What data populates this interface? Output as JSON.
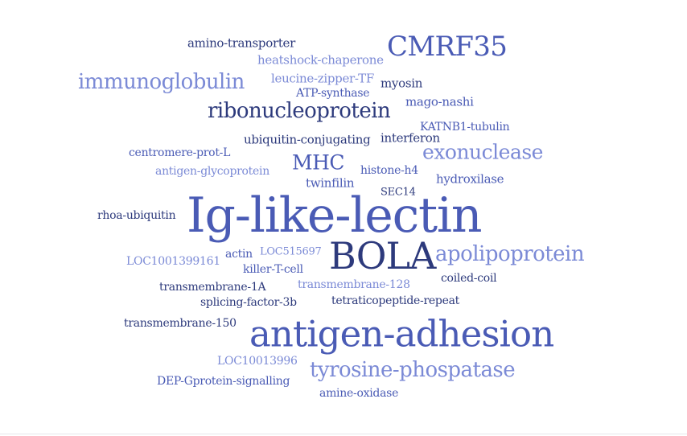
{
  "palette": {
    "dark": "#2d3a7c",
    "mid": "#4a5bb5",
    "light": "#7b8ad6"
  },
  "words": [
    {
      "id": "w-amino-transporter",
      "text": "amino-transporter",
      "tone": "dark"
    },
    {
      "id": "w-cmrf35",
      "text": "CMRF35",
      "tone": "mid"
    },
    {
      "id": "w-heatshock-chaperone",
      "text": "heatshock-chaperone",
      "tone": "light"
    },
    {
      "id": "w-immunoglobulin",
      "text": "immunoglobulin",
      "tone": "light"
    },
    {
      "id": "w-leucine-zipper-tf",
      "text": "leucine-zipper-TF",
      "tone": "light"
    },
    {
      "id": "w-myosin",
      "text": "myosin",
      "tone": "dark"
    },
    {
      "id": "w-atp-synthase",
      "text": "ATP-synthase",
      "tone": "mid"
    },
    {
      "id": "w-mago-nashi",
      "text": "mago-nashi",
      "tone": "mid"
    },
    {
      "id": "w-ribonucleoprotein",
      "text": "ribonucleoprotein",
      "tone": "dark"
    },
    {
      "id": "w-katnb1-tubulin",
      "text": "KATNB1-tubulin",
      "tone": "mid"
    },
    {
      "id": "w-ubiquitin-conjugating",
      "text": "ubiquitin-conjugating",
      "tone": "dark"
    },
    {
      "id": "w-interferon",
      "text": "interferon",
      "tone": "dark"
    },
    {
      "id": "w-exonuclease",
      "text": "exonuclease",
      "tone": "light"
    },
    {
      "id": "w-centromere-prot-l",
      "text": "centromere-prot-L",
      "tone": "mid"
    },
    {
      "id": "w-mhc",
      "text": "MHC",
      "tone": "mid"
    },
    {
      "id": "w-antigen-glycoprotein",
      "text": "antigen-glycoprotein",
      "tone": "light"
    },
    {
      "id": "w-histone-h4",
      "text": "histone-h4",
      "tone": "mid"
    },
    {
      "id": "w-hydroxilase",
      "text": "hydroxilase",
      "tone": "mid"
    },
    {
      "id": "w-twinfilin",
      "text": "twinfilin",
      "tone": "mid"
    },
    {
      "id": "w-sec14",
      "text": "SEC14",
      "tone": "dark"
    },
    {
      "id": "w-rhoa-ubiquitin",
      "text": "rhoa-ubiquitin",
      "tone": "dark"
    },
    {
      "id": "w-ig-like-lectin",
      "text": "Ig-like-lectin",
      "tone": "mid"
    },
    {
      "id": "w-bola",
      "text": "BOLA",
      "tone": "dark"
    },
    {
      "id": "w-apolipoprotein",
      "text": "apolipoprotein",
      "tone": "light"
    },
    {
      "id": "w-loc1001399161",
      "text": "LOC1001399161",
      "tone": "light"
    },
    {
      "id": "w-actin",
      "text": "actin",
      "tone": "mid"
    },
    {
      "id": "w-loc515697",
      "text": "LOC515697",
      "tone": "light"
    },
    {
      "id": "w-killer-t-cell",
      "text": "killer-T-cell",
      "tone": "mid"
    },
    {
      "id": "w-coiled-coil",
      "text": "coiled-coil",
      "tone": "dark"
    },
    {
      "id": "w-transmembrane-1a",
      "text": "transmembrane-1A",
      "tone": "dark"
    },
    {
      "id": "w-transmembrane-128",
      "text": "transmembrane-128",
      "tone": "light"
    },
    {
      "id": "w-splicing-factor-3b",
      "text": "splicing-factor-3b",
      "tone": "dark"
    },
    {
      "id": "w-tetraticopeptide-repeat",
      "text": "tetraticopeptide-repeat",
      "tone": "dark"
    },
    {
      "id": "w-transmembrane-150",
      "text": "transmembrane-150",
      "tone": "dark"
    },
    {
      "id": "w-antigen-adhesion",
      "text": "antigen-adhesion",
      "tone": "mid"
    },
    {
      "id": "w-loc10013996",
      "text": "LOC10013996",
      "tone": "light"
    },
    {
      "id": "w-tyrosine-phospatase",
      "text": "tyrosine-phospatase",
      "tone": "light"
    },
    {
      "id": "w-dep-gprotein-signalling",
      "text": "DEP-Gprotein-signalling",
      "tone": "mid"
    },
    {
      "id": "w-amine-oxidase",
      "text": "amine-oxidase",
      "tone": "mid"
    }
  ]
}
